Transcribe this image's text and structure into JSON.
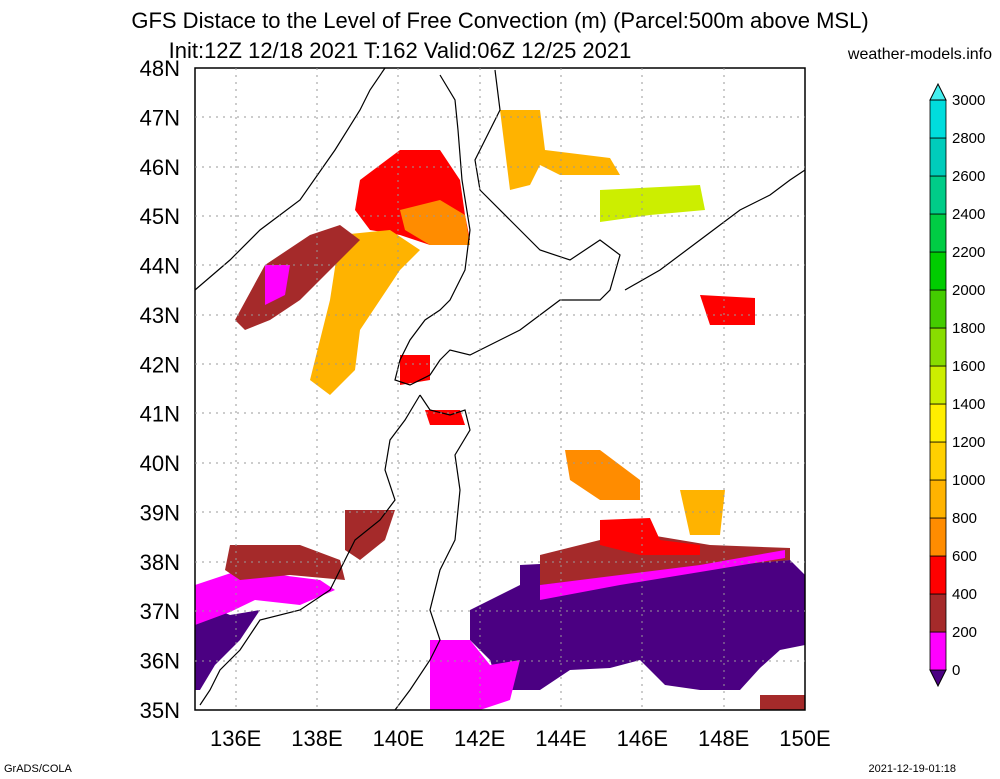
{
  "title_line1": "GFS Distace to the Level of Free Convection (m) (Parcel:500m above MSL)",
  "title_line2": "Init:12Z 12/18 2021 T:162 Valid:06Z 12/25 2021",
  "brand": "weather-models.info",
  "footer_left": "GrADS/COLA",
  "footer_right": "2021-12-19-01:18",
  "map": {
    "lon_range": [
      135,
      150
    ],
    "lat_range": [
      35,
      48
    ],
    "lon_labels": [
      "136E",
      "138E",
      "140E",
      "142E",
      "144E",
      "146E",
      "148E",
      "150E"
    ],
    "lat_labels": [
      "35N",
      "36N",
      "37N",
      "38N",
      "39N",
      "40N",
      "41N",
      "42N",
      "43N",
      "44N",
      "45N",
      "46N",
      "47N",
      "48N"
    ]
  },
  "colorbar": {
    "levels": [
      "0",
      "200",
      "400",
      "600",
      "800",
      "1000",
      "1200",
      "1400",
      "1600",
      "1800",
      "2000",
      "2200",
      "2400",
      "2600",
      "2800",
      "3000"
    ],
    "colors": [
      "#4b0082",
      "#ff00ff",
      "#a52a2a",
      "#ff0000",
      "#ff8c00",
      "#ffb300",
      "#ffd000",
      "#ffee00",
      "#ccee00",
      "#88dd00",
      "#44cc00",
      "#00cc00",
      "#00cc44",
      "#00cc88",
      "#00ccbb",
      "#00dddd",
      "#44eeee"
    ]
  }
}
